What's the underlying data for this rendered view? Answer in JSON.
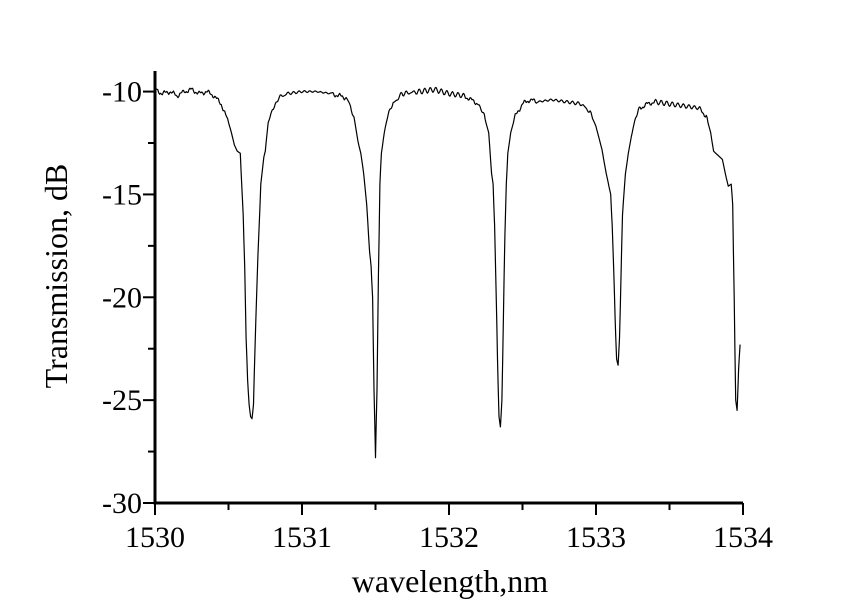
{
  "chart_data": {
    "type": "line",
    "title": "",
    "xlabel": "wavelength,nm",
    "ylabel": "Transmission, dB",
    "xlim": [
      1530,
      1534
    ],
    "ylim": [
      -30,
      -9
    ],
    "xticks": [
      1530,
      1531,
      1532,
      1533,
      1534
    ],
    "yticks": [
      -10,
      -15,
      -20,
      -25,
      -30
    ],
    "grid": false,
    "legend": "none",
    "line_color": "#000000",
    "series": [
      {
        "x": [
          1530.0,
          1530.05,
          1530.1,
          1530.15,
          1530.2,
          1530.25,
          1530.3,
          1530.35,
          1530.4,
          1530.45,
          1530.5,
          1530.52,
          1530.54,
          1530.56,
          1530.58,
          1530.6,
          1530.61,
          1530.62,
          1530.63,
          1530.64,
          1530.65,
          1530.66,
          1530.67,
          1530.68,
          1530.7,
          1530.72,
          1530.74,
          1530.75,
          1530.77,
          1530.8,
          1530.84,
          1530.9,
          1531.0,
          1531.1,
          1531.2,
          1531.25,
          1531.3,
          1531.33,
          1531.36,
          1531.38,
          1531.4,
          1531.42,
          1531.44,
          1531.46,
          1531.47,
          1531.48,
          1531.49,
          1531.5,
          1531.51,
          1531.52,
          1531.53,
          1531.54,
          1531.56,
          1531.58,
          1531.62,
          1531.68,
          1531.8,
          1531.9,
          1532.0,
          1532.1,
          1532.15,
          1532.2,
          1532.24,
          1532.27,
          1532.29,
          1532.3,
          1532.31,
          1532.32,
          1532.33,
          1532.34,
          1532.35,
          1532.36,
          1532.37,
          1532.38,
          1532.39,
          1532.4,
          1532.42,
          1532.45,
          1532.5,
          1532.55,
          1532.6,
          1532.7,
          1532.8,
          1532.9,
          1532.96,
          1533.0,
          1533.04,
          1533.07,
          1533.1,
          1533.11,
          1533.12,
          1533.13,
          1533.14,
          1533.15,
          1533.16,
          1533.17,
          1533.18,
          1533.2,
          1533.22,
          1533.24,
          1533.27,
          1533.3,
          1533.35,
          1533.4,
          1533.5,
          1533.6,
          1533.7,
          1533.75,
          1533.78,
          1533.8,
          1533.83,
          1533.86,
          1533.88,
          1533.9,
          1533.92,
          1533.93,
          1533.94,
          1533.95,
          1533.96,
          1533.97,
          1533.98
        ],
        "y": [
          -9.9,
          -10.1,
          -10.0,
          -10.2,
          -10.0,
          -9.9,
          -10.1,
          -10.0,
          -10.2,
          -10.6,
          -11.5,
          -12.0,
          -12.6,
          -12.9,
          -13.0,
          -16.0,
          -18.5,
          -22.0,
          -24.0,
          -25.2,
          -25.8,
          -25.9,
          -25.2,
          -22.5,
          -18.0,
          -14.5,
          -13.2,
          -12.9,
          -11.5,
          -10.9,
          -10.3,
          -10.1,
          -10.0,
          -10.0,
          -10.1,
          -10.2,
          -10.3,
          -10.7,
          -11.5,
          -12.4,
          -13.0,
          -14.0,
          -15.5,
          -17.8,
          -18.5,
          -20.0,
          -24.5,
          -27.8,
          -24.5,
          -19.0,
          -14.5,
          -13.0,
          -12.0,
          -11.2,
          -10.6,
          -10.1,
          -10.0,
          -9.9,
          -10.1,
          -10.2,
          -10.4,
          -10.6,
          -11.2,
          -12.0,
          -14.0,
          -14.5,
          -16.5,
          -19.5,
          -23.0,
          -25.8,
          -26.3,
          -25.0,
          -21.0,
          -17.0,
          -14.5,
          -13.0,
          -12.0,
          -11.2,
          -10.6,
          -10.4,
          -10.5,
          -10.4,
          -10.5,
          -10.6,
          -11.0,
          -11.7,
          -12.8,
          -14.0,
          -15.0,
          -16.5,
          -18.5,
          -21.0,
          -23.0,
          -23.3,
          -22.0,
          -19.0,
          -16.0,
          -14.0,
          -13.0,
          -12.2,
          -11.2,
          -10.8,
          -10.6,
          -10.5,
          -10.6,
          -10.7,
          -10.8,
          -11.2,
          -12.0,
          -12.9,
          -13.1,
          -13.3,
          -14.0,
          -14.6,
          -14.5,
          -15.5,
          -20.0,
          -25.0,
          -25.5,
          -23.5,
          -22.3
        ]
      }
    ]
  }
}
